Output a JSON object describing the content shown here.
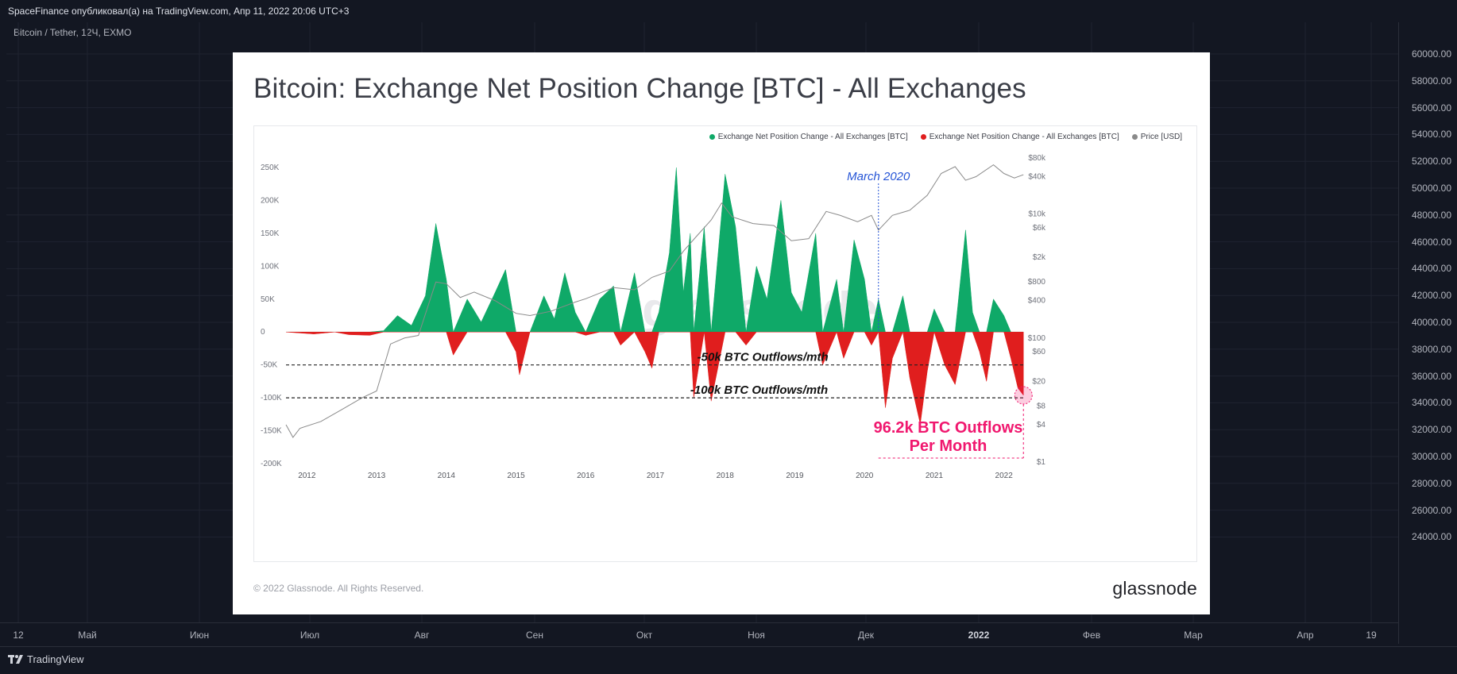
{
  "header": {
    "publisher": "SpaceFinance опубликовал(а) на TradingView.com, Апр 11, 2022 20:06 UTC+3",
    "symbol": "Bitcoin / Tether, 12Ч, EXMO"
  },
  "price_axis": {
    "labels": [
      "60000.00",
      "58000.00",
      "56000.00",
      "54000.00",
      "52000.00",
      "50000.00",
      "48000.00",
      "46000.00",
      "44000.00",
      "42000.00",
      "40000.00",
      "38000.00",
      "36000.00",
      "34000.00",
      "32000.00",
      "30000.00",
      "28000.00",
      "26000.00",
      "24000.00"
    ]
  },
  "time_axis": {
    "labels": [
      "12",
      "Май",
      "Июн",
      "Июл",
      "Авг",
      "Сен",
      "Окт",
      "Ноя",
      "Дек",
      "2022",
      "Фев",
      "Мар",
      "Апр",
      "19"
    ]
  },
  "footer": {
    "brand": "TradingView"
  },
  "card": {
    "title": "Bitcoin: Exchange Net Position Change [BTC] - All Exchanges",
    "copyright": "© 2022 Glassnode. All Rights Reserved.",
    "brand": "glassnode",
    "watermark": "glassnode"
  },
  "colors": {
    "inflow": "#0fa968",
    "outflow": "#e01e1e",
    "price": "#8a8a8a",
    "highlight": "#f0176e",
    "annotation_blue": "#2554d6"
  },
  "chart_data": {
    "type": "area",
    "legend": [
      {
        "label": "Exchange Net Position Change - All Exchanges [BTC]",
        "color": "#0fa968"
      },
      {
        "label": "Exchange Net Position Change - All Exchanges [BTC]",
        "color": "#e01e1e"
      },
      {
        "label": "Price [USD]",
        "color": "#8a8a8a"
      }
    ],
    "x_ticks": [
      "2012",
      "2013",
      "2014",
      "2015",
      "2016",
      "2017",
      "2018",
      "2019",
      "2020",
      "2021",
      "2022"
    ],
    "y_left_ticks": [
      "250K",
      "200K",
      "150K",
      "100K",
      "50K",
      "0",
      "-50K",
      "-100K",
      "-150K",
      "-200K"
    ],
    "y_left_range": [
      -200000,
      250000
    ],
    "y_right_ticks": [
      "$80k",
      "$40k",
      "$10k",
      "$6k",
      "$2k",
      "$800",
      "$400",
      "$100",
      "$60",
      "$20",
      "$8",
      "$4",
      "$1"
    ],
    "y_right_scale": "log",
    "x_range": [
      2011.7,
      2022.3
    ],
    "net_position": [
      [
        2011.7,
        0
      ],
      [
        2012.1,
        -3000
      ],
      [
        2012.4,
        0
      ],
      [
        2012.6,
        -4000
      ],
      [
        2012.9,
        -5000
      ],
      [
        2013.1,
        2000
      ],
      [
        2013.3,
        25000
      ],
      [
        2013.5,
        10000
      ],
      [
        2013.7,
        55000
      ],
      [
        2013.85,
        165000
      ],
      [
        2014.0,
        80000
      ],
      [
        2014.1,
        -35000
      ],
      [
        2014.3,
        50000
      ],
      [
        2014.5,
        15000
      ],
      [
        2014.7,
        60000
      ],
      [
        2014.85,
        95000
      ],
      [
        2015.0,
        -30000
      ],
      [
        2015.05,
        -65000
      ],
      [
        2015.2,
        0
      ],
      [
        2015.4,
        55000
      ],
      [
        2015.55,
        20000
      ],
      [
        2015.7,
        90000
      ],
      [
        2015.85,
        30000
      ],
      [
        2016.0,
        -5000
      ],
      [
        2016.2,
        50000
      ],
      [
        2016.4,
        70000
      ],
      [
        2016.5,
        -20000
      ],
      [
        2016.7,
        90000
      ],
      [
        2016.85,
        -30000
      ],
      [
        2016.95,
        -55000
      ],
      [
        2017.05,
        30000
      ],
      [
        2017.2,
        120000
      ],
      [
        2017.3,
        250000
      ],
      [
        2017.4,
        60000
      ],
      [
        2017.5,
        150000
      ],
      [
        2017.55,
        -100000
      ],
      [
        2017.7,
        160000
      ],
      [
        2017.8,
        -105000
      ],
      [
        2018.0,
        240000
      ],
      [
        2018.15,
        160000
      ],
      [
        2018.3,
        -20000
      ],
      [
        2018.45,
        100000
      ],
      [
        2018.6,
        50000
      ],
      [
        2018.8,
        200000
      ],
      [
        2018.95,
        60000
      ],
      [
        2019.1,
        30000
      ],
      [
        2019.3,
        150000
      ],
      [
        2019.4,
        -50000
      ],
      [
        2019.6,
        80000
      ],
      [
        2019.7,
        -40000
      ],
      [
        2019.85,
        140000
      ],
      [
        2020.0,
        80000
      ],
      [
        2020.1,
        -20000
      ],
      [
        2020.2,
        50000
      ],
      [
        2020.3,
        -115000
      ],
      [
        2020.4,
        -40000
      ],
      [
        2020.55,
        55000
      ],
      [
        2020.65,
        -70000
      ],
      [
        2020.8,
        -140000
      ],
      [
        2020.9,
        -60000
      ],
      [
        2021.0,
        35000
      ],
      [
        2021.15,
        -50000
      ],
      [
        2021.3,
        -80000
      ],
      [
        2021.45,
        155000
      ],
      [
        2021.55,
        30000
      ],
      [
        2021.65,
        -30000
      ],
      [
        2021.75,
        -75000
      ],
      [
        2021.85,
        50000
      ],
      [
        2022.0,
        25000
      ],
      [
        2022.1,
        -40000
      ],
      [
        2022.2,
        -85000
      ],
      [
        2022.28,
        -96200
      ]
    ],
    "price_usd": [
      [
        2011.7,
        4
      ],
      [
        2011.8,
        2.5
      ],
      [
        2011.9,
        3.5
      ],
      [
        2012.2,
        4.5
      ],
      [
        2012.5,
        7
      ],
      [
        2012.8,
        11
      ],
      [
        2013.0,
        14
      ],
      [
        2013.2,
        80
      ],
      [
        2013.4,
        100
      ],
      [
        2013.6,
        110
      ],
      [
        2013.85,
        800
      ],
      [
        2014.0,
        750
      ],
      [
        2014.2,
        450
      ],
      [
        2014.4,
        550
      ],
      [
        2014.7,
        400
      ],
      [
        2015.0,
        250
      ],
      [
        2015.2,
        230
      ],
      [
        2015.5,
        270
      ],
      [
        2015.85,
        380
      ],
      [
        2016.0,
        430
      ],
      [
        2016.4,
        650
      ],
      [
        2016.7,
        600
      ],
      [
        2016.95,
        950
      ],
      [
        2017.2,
        1200
      ],
      [
        2017.4,
        2500
      ],
      [
        2017.6,
        4500
      ],
      [
        2017.8,
        8000
      ],
      [
        2017.95,
        15000
      ],
      [
        2018.1,
        9000
      ],
      [
        2018.4,
        7000
      ],
      [
        2018.7,
        6500
      ],
      [
        2018.95,
        3700
      ],
      [
        2019.2,
        4000
      ],
      [
        2019.45,
        11000
      ],
      [
        2019.65,
        9500
      ],
      [
        2019.9,
        7500
      ],
      [
        2020.1,
        9500
      ],
      [
        2020.2,
        5500
      ],
      [
        2020.4,
        9500
      ],
      [
        2020.65,
        11500
      ],
      [
        2020.9,
        20000
      ],
      [
        2021.1,
        45000
      ],
      [
        2021.3,
        58000
      ],
      [
        2021.45,
        35000
      ],
      [
        2021.6,
        40000
      ],
      [
        2021.85,
        62000
      ],
      [
        2022.0,
        45000
      ],
      [
        2022.15,
        38000
      ],
      [
        2022.28,
        43000
      ]
    ],
    "reference_lines": [
      {
        "value": -50000,
        "label": "-50k BTC Outflows/mth"
      },
      {
        "value": -100000,
        "label": "-100k BTC Outflows/mth"
      }
    ],
    "annotations": [
      {
        "label": "March 2020",
        "x": 2020.2
      },
      {
        "label": "96.2k BTC Outflows",
        "label2": "Per Month",
        "x": 2022.28,
        "y": -96200
      }
    ]
  }
}
